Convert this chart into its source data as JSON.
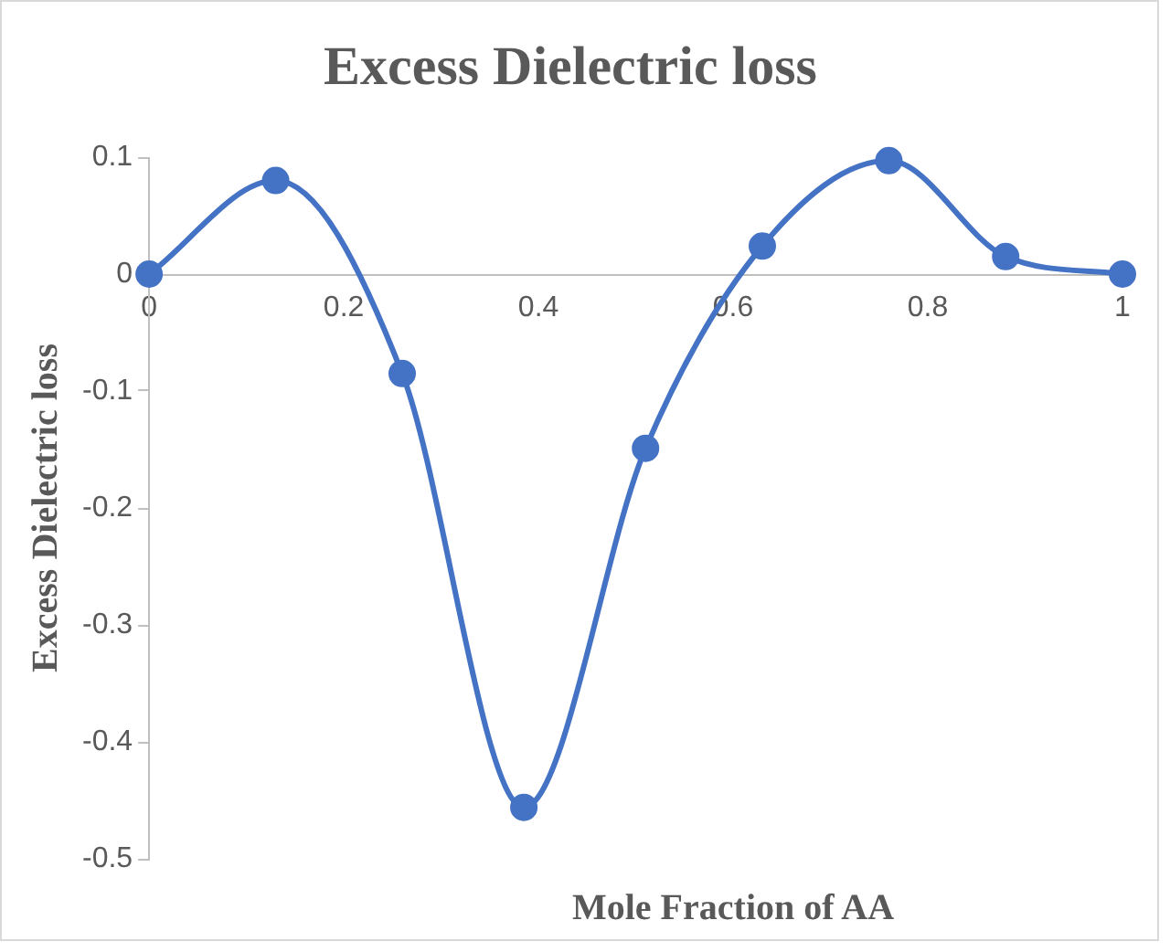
{
  "chart_data": {
    "type": "line",
    "title": "Excess Dielectric loss",
    "xlabel": "Mole Fraction of AA",
    "ylabel": "Excess Dielectric loss",
    "x": [
      0,
      0.13,
      0.26,
      0.385,
      0.51,
      0.63,
      0.76,
      0.88,
      1
    ],
    "series": [
      {
        "color": "#4472c4",
        "values": [
          0,
          0.08,
          -0.085,
          -0.456,
          -0.149,
          0.024,
          0.097,
          0.015,
          0
        ]
      }
    ],
    "xlim": [
      0,
      1
    ],
    "xticks": [
      0,
      0.2,
      0.4,
      0.6,
      0.8,
      1
    ],
    "ylim": [
      -0.5,
      0.1
    ],
    "yticks": [
      -0.5,
      -0.4,
      -0.3,
      -0.2,
      -0.1,
      0,
      0.1
    ],
    "grid": false,
    "legend": false,
    "marker": "circle",
    "line_style": "solid"
  }
}
